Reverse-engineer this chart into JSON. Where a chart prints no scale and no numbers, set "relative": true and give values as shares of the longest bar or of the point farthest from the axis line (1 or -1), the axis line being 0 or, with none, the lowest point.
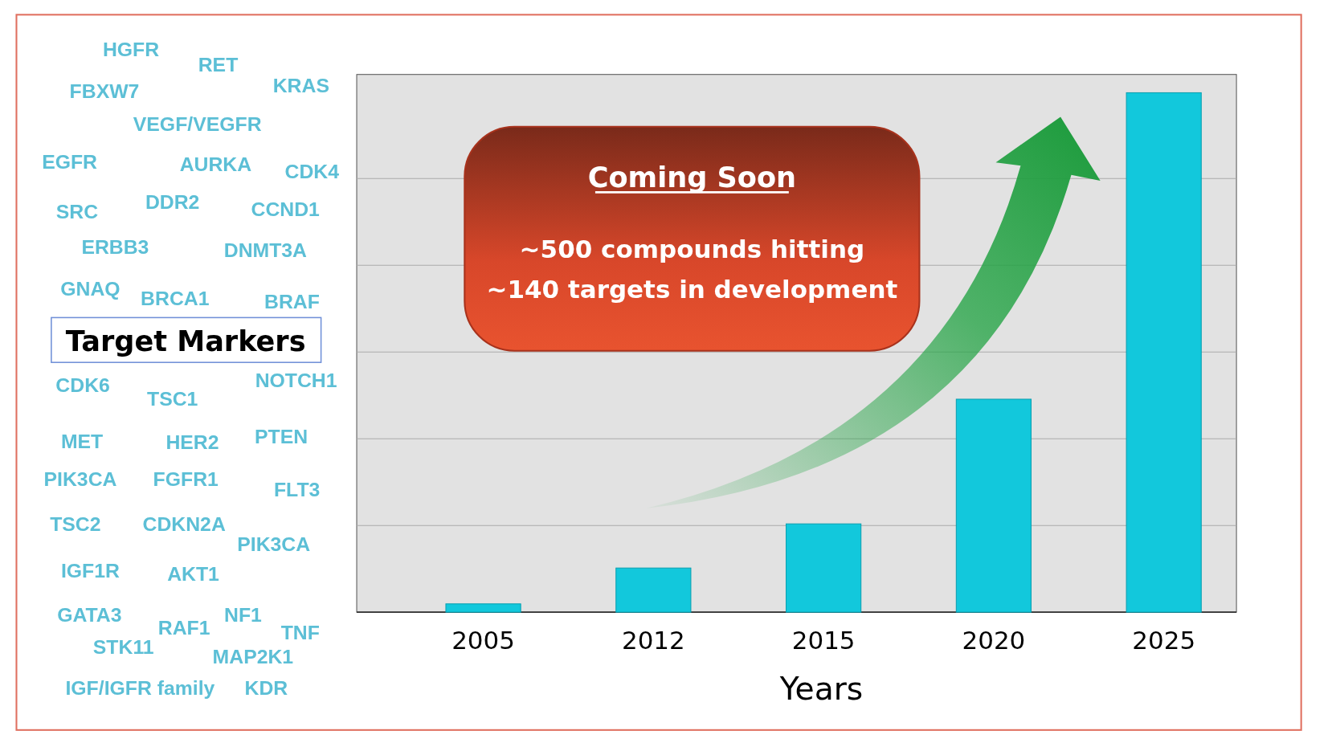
{
  "chart_data": {
    "type": "bar",
    "relative": true,
    "xlabel": "Years",
    "categories": [
      "2005",
      "2012",
      "2015",
      "2020",
      "2025"
    ],
    "values": [
      0.016,
      0.085,
      0.17,
      0.41,
      1
    ],
    "color": "#12c8dc",
    "grid": "y",
    "annotations": [
      "HGFR",
      "RET",
      "FBXW7",
      "KRAS",
      "VEGF/VEGFR",
      "EGFR",
      "AURKA",
      "CDK4",
      "SRC",
      "DDR2",
      "CCND1",
      "ERBB3",
      "DNMT3A",
      "GNAQ",
      "BRCA1",
      "BRAF",
      "CDK6",
      "NOTCH1",
      "TSC1",
      "MET",
      "HER2",
      "PTEN",
      "PIK3CA",
      "FGFR1",
      "FLT3",
      "TSC2",
      "CDKN2A",
      "PIK3CA",
      "IGF1R",
      "AKT1",
      "GATA3",
      "RAF1",
      "NF1",
      "TNF",
      "STK11",
      "MAP2K1",
      "IGF/IGFR family",
      "KDR",
      "Target Markers",
      "Coming Soon",
      "~500 compounds hitting",
      "~140 targets in development"
    ]
  }
}
